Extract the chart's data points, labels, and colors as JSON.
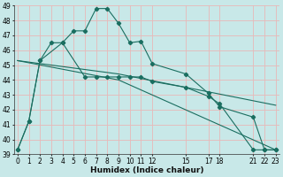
{
  "xlabel": "Humidex (Indice chaleur)",
  "bg_color": "#c8e8e8",
  "grid_color": "#e8b8b8",
  "line_color": "#1a6e60",
  "ylim": [
    39,
    49
  ],
  "yticks": [
    39,
    40,
    41,
    42,
    43,
    44,
    45,
    46,
    47,
    48,
    49
  ],
  "xticks": [
    0,
    1,
    2,
    3,
    4,
    5,
    6,
    7,
    8,
    9,
    10,
    11,
    12,
    15,
    17,
    18,
    21,
    22,
    23
  ],
  "xlim": [
    -0.3,
    23.3
  ],
  "lines": [
    {
      "x": [
        0,
        1,
        2,
        4,
        5,
        6,
        7,
        8,
        9,
        10,
        11,
        12,
        15,
        17,
        18,
        21,
        22,
        23
      ],
      "y": [
        39.3,
        41.2,
        45.3,
        46.5,
        47.3,
        47.3,
        48.8,
        48.8,
        47.8,
        46.5,
        46.6,
        45.1,
        44.4,
        43.1,
        42.2,
        41.5,
        39.3,
        39.3
      ],
      "has_markers": true
    },
    {
      "x": [
        0,
        1,
        2,
        3,
        4,
        6,
        7,
        8,
        9,
        10,
        11,
        12,
        15,
        17,
        18,
        21,
        22,
        23
      ],
      "y": [
        39.3,
        41.2,
        45.3,
        46.5,
        46.5,
        44.2,
        44.2,
        44.2,
        44.2,
        44.2,
        44.2,
        43.9,
        43.5,
        42.9,
        42.4,
        39.3,
        39.3,
        39.3
      ],
      "has_markers": true
    },
    {
      "x": [
        0,
        9,
        23
      ],
      "y": [
        45.3,
        44.4,
        42.3
      ],
      "has_markers": false
    },
    {
      "x": [
        0,
        9,
        23
      ],
      "y": [
        45.3,
        44.0,
        39.3
      ],
      "has_markers": false
    }
  ]
}
